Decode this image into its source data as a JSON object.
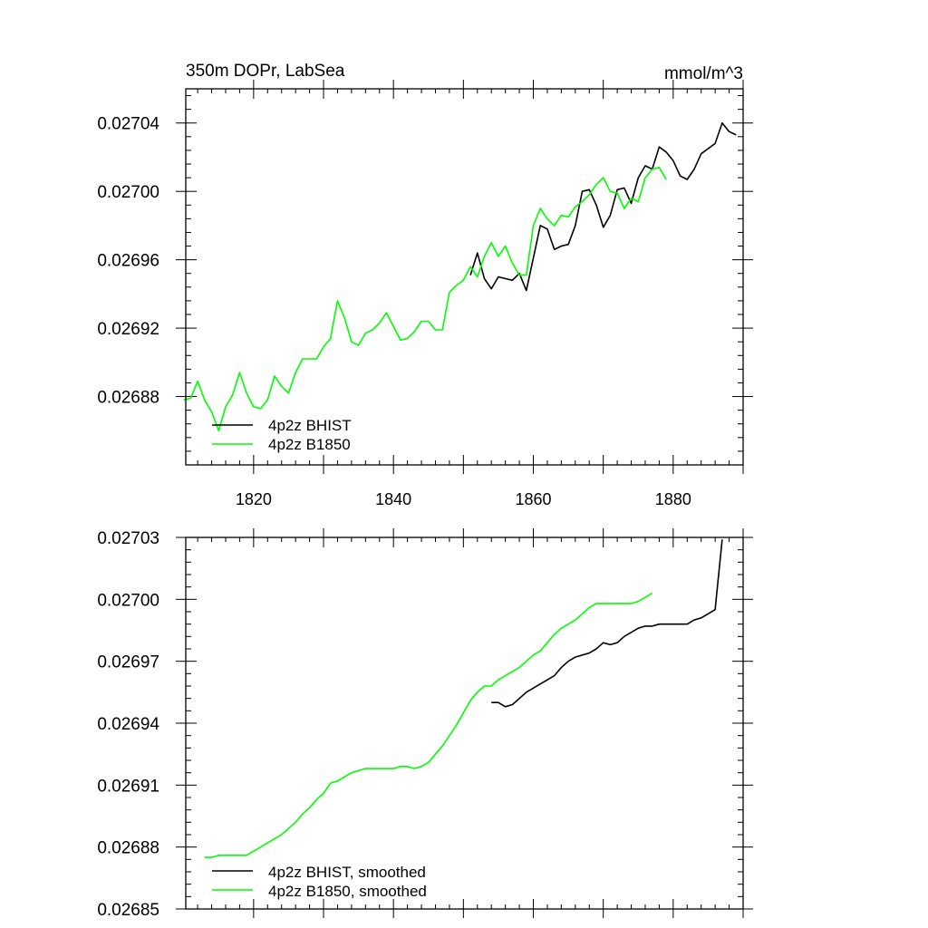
{
  "chart_data": [
    {
      "type": "line",
      "title": "350m DOPr, LabSea",
      "units": "mmol/m^3",
      "xlim": [
        1810.3,
        1890
      ],
      "ylim": [
        0.02684,
        0.02706
      ],
      "xticks": [
        1820,
        1840,
        1860,
        1880
      ],
      "xtick_labels": [
        "1820",
        "1840",
        "1860",
        "1880"
      ],
      "yticks": [
        0.02688,
        0.02692,
        0.02696,
        0.027,
        0.02704
      ],
      "ytick_labels": [
        "0.02688",
        "0.02692",
        "0.02696",
        "0.02700",
        "0.02704"
      ],
      "legend_position": "bottom-left",
      "grid": false,
      "series": [
        {
          "name": "4p2z BHIST",
          "color": "#000000",
          "x": [
            1851,
            1852,
            1853,
            1854,
            1855,
            1856,
            1857,
            1858,
            1859,
            1860,
            1861,
            1862,
            1863,
            1864,
            1865,
            1866,
            1867,
            1868,
            1869,
            1870,
            1871,
            1872,
            1873,
            1874,
            1875,
            1876,
            1877,
            1878,
            1879,
            1880,
            1881,
            1882,
            1883,
            1884,
            1885,
            1886,
            1887,
            1888,
            1889
          ],
          "y": [
            0.026951,
            0.026964,
            0.026949,
            0.026943,
            0.02695,
            0.026949,
            0.026948,
            0.026952,
            0.026942,
            0.026961,
            0.02698,
            0.026978,
            0.026966,
            0.026968,
            0.026969,
            0.02698,
            0.027,
            0.027001,
            0.026992,
            0.026979,
            0.026986,
            0.027001,
            0.027002,
            0.026993,
            0.027008,
            0.027015,
            0.027013,
            0.027026,
            0.027023,
            0.027018,
            0.027009,
            0.027007,
            0.027013,
            0.027022,
            0.027025,
            0.027028,
            0.02704,
            0.027035,
            0.027033
          ]
        },
        {
          "name": "4p2z B1850",
          "color": "#00ff00",
          "x": [
            1810,
            1811,
            1812,
            1813,
            1814,
            1815,
            1816,
            1817,
            1818,
            1819,
            1820,
            1821,
            1822,
            1823,
            1824,
            1825,
            1826,
            1827,
            1828,
            1829,
            1830,
            1831,
            1832,
            1833,
            1834,
            1835,
            1836,
            1837,
            1838,
            1839,
            1840,
            1841,
            1842,
            1843,
            1844,
            1845,
            1846,
            1847,
            1848,
            1849,
            1850,
            1851,
            1852,
            1853,
            1854,
            1855,
            1856,
            1857,
            1858,
            1859,
            1860,
            1861,
            1862,
            1863,
            1864,
            1865,
            1866,
            1867,
            1868,
            1869,
            1870,
            1871,
            1872,
            1873,
            1874,
            1875,
            1876,
            1877,
            1878,
            1879
          ],
          "y": [
            0.026878,
            0.026879,
            0.026889,
            0.026878,
            0.026871,
            0.02686,
            0.026874,
            0.026881,
            0.026894,
            0.026882,
            0.026874,
            0.026873,
            0.026878,
            0.026892,
            0.026886,
            0.026882,
            0.026894,
            0.026902,
            0.026902,
            0.026902,
            0.026909,
            0.026914,
            0.026936,
            0.026926,
            0.026912,
            0.02691,
            0.026917,
            0.026919,
            0.026923,
            0.026929,
            0.026921,
            0.026913,
            0.026914,
            0.026918,
            0.026924,
            0.026924,
            0.026919,
            0.026919,
            0.026941,
            0.026945,
            0.026948,
            0.026956,
            0.02695,
            0.026962,
            0.02697,
            0.026962,
            0.026968,
            0.026958,
            0.026951,
            0.026951,
            0.02698,
            0.02699,
            0.026984,
            0.02698,
            0.026986,
            0.026985,
            0.026991,
            0.026994,
            0.026998,
            0.027004,
            0.027008,
            0.027,
            0.026999,
            0.02699,
            0.026996,
            0.026994,
            0.027008,
            0.027013,
            0.027014,
            0.027007
          ]
        }
      ]
    },
    {
      "type": "line",
      "xlim": [
        1810.3,
        1890
      ],
      "ylim": [
        0.02685,
        0.02703
      ],
      "xticks": [
        1820,
        1840,
        1860,
        1880
      ],
      "xtick_labels": [],
      "yticks": [
        0.02685,
        0.02688,
        0.02691,
        0.02694,
        0.02697,
        0.027,
        0.02703
      ],
      "ytick_labels": [
        "0.02685",
        "0.02688",
        "0.02691",
        "0.02694",
        "0.02697",
        "0.02700",
        "0.02703"
      ],
      "legend_position": "bottom-left",
      "grid": false,
      "series": [
        {
          "name": "4p2z BHIST, smoothed",
          "color": "#000000",
          "x": [
            1854,
            1855,
            1856,
            1857,
            1858,
            1859,
            1860,
            1861,
            1862,
            1863,
            1864,
            1865,
            1866,
            1867,
            1868,
            1869,
            1870,
            1871,
            1872,
            1873,
            1874,
            1875,
            1876,
            1877,
            1878,
            1879,
            1880,
            1881,
            1882,
            1883,
            1884,
            1885,
            1886,
            1887
          ],
          "y": [
            0.02695,
            0.02695,
            0.026948,
            0.026949,
            0.026952,
            0.026955,
            0.026957,
            0.026959,
            0.026961,
            0.026963,
            0.026967,
            0.02697,
            0.026972,
            0.026973,
            0.026974,
            0.026976,
            0.026979,
            0.026978,
            0.026979,
            0.026982,
            0.026984,
            0.026986,
            0.026987,
            0.026987,
            0.026988,
            0.026988,
            0.026988,
            0.026988,
            0.026988,
            0.02699,
            0.026991,
            0.026993,
            0.026995,
            0.027029
          ]
        },
        {
          "name": "4p2z B1850, smoothed",
          "color": "#00ff00",
          "x": [
            1813,
            1814,
            1815,
            1816,
            1817,
            1818,
            1819,
            1820,
            1821,
            1822,
            1823,
            1824,
            1825,
            1826,
            1827,
            1828,
            1829,
            1830,
            1831,
            1832,
            1833,
            1834,
            1835,
            1836,
            1837,
            1838,
            1839,
            1840,
            1841,
            1842,
            1843,
            1844,
            1845,
            1846,
            1847,
            1848,
            1849,
            1850,
            1851,
            1852,
            1853,
            1854,
            1855,
            1856,
            1857,
            1858,
            1859,
            1860,
            1861,
            1862,
            1863,
            1864,
            1865,
            1866,
            1867,
            1868,
            1869,
            1870,
            1871,
            1872,
            1873,
            1874,
            1875,
            1876,
            1877
          ],
          "y": [
            0.026875,
            0.026875,
            0.026876,
            0.026876,
            0.026876,
            0.026876,
            0.026876,
            0.026878,
            0.02688,
            0.026882,
            0.026884,
            0.026886,
            0.026889,
            0.026892,
            0.026896,
            0.026899,
            0.026903,
            0.026906,
            0.026911,
            0.026912,
            0.026914,
            0.026916,
            0.026917,
            0.026918,
            0.026918,
            0.026918,
            0.026918,
            0.026918,
            0.026919,
            0.026919,
            0.026918,
            0.026919,
            0.026921,
            0.026925,
            0.026929,
            0.026934,
            0.026939,
            0.026945,
            0.026951,
            0.026955,
            0.026958,
            0.026958,
            0.026961,
            0.026963,
            0.026965,
            0.026967,
            0.02697,
            0.026973,
            0.026975,
            0.026979,
            0.026983,
            0.026986,
            0.026988,
            0.02699,
            0.026993,
            0.026996,
            0.026998,
            0.026998,
            0.026998,
            0.026998,
            0.026998,
            0.026998,
            0.026999,
            0.027001,
            0.027003
          ]
        }
      ]
    }
  ]
}
